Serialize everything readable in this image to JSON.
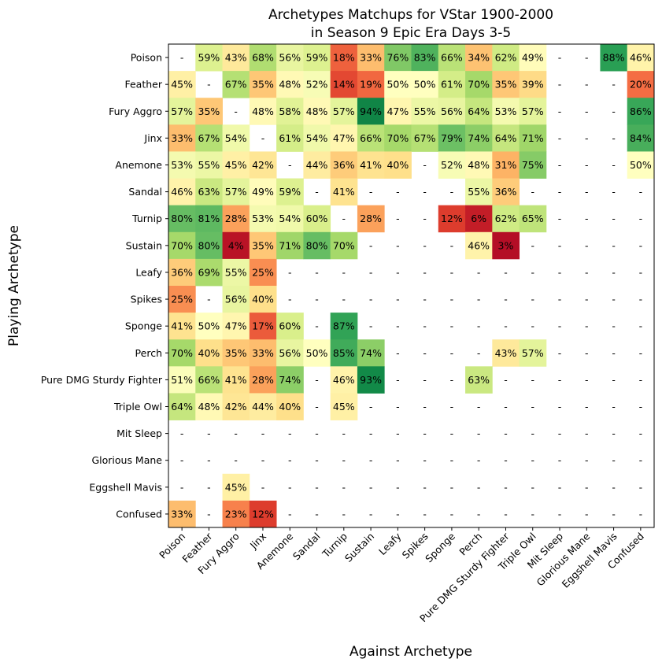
{
  "chart_data": {
    "type": "heatmap",
    "title": "Archetypes Matchups for VStar 1900-2000",
    "subtitle": "in Season 9 Epic Era Days 3-5",
    "xlabel": "Against Archetype",
    "ylabel": "Playing Archetype",
    "rows": [
      "Poison",
      "Feather",
      "Fury Aggro",
      "Jinx",
      "Anemone",
      "Sandal",
      "Turnip",
      "Sustain",
      "Leafy",
      "Spikes",
      "Sponge",
      "Perch",
      "Pure DMG Sturdy Fighter",
      "Triple Owl",
      "Mit Sleep",
      "Glorious Mane",
      "Eggshell Mavis",
      "Confused"
    ],
    "columns": [
      "Poison",
      "Feather",
      "Fury Aggro",
      "Jinx",
      "Anemone",
      "Sandal",
      "Turnip",
      "Sustain",
      "Leafy",
      "Spikes",
      "Sponge",
      "Perch",
      "Pure DMG Sturdy Fighter",
      "Triple Owl",
      "Mit Sleep",
      "Glorious Mane",
      "Eggshell Mavis",
      "Confused"
    ],
    "missing_label": "-",
    "value_unit": "%",
    "colormap": "RdYlGn",
    "vmin": 0,
    "vmax": 100,
    "values": [
      [
        null,
        59,
        43,
        68,
        56,
        59,
        18,
        33,
        76,
        83,
        66,
        34,
        62,
        49,
        null,
        null,
        88,
        46
      ],
      [
        45,
        null,
        67,
        35,
        48,
        52,
        14,
        19,
        50,
        50,
        61,
        70,
        35,
        39,
        null,
        null,
        null,
        20
      ],
      [
        57,
        35,
        null,
        48,
        58,
        48,
        57,
        94,
        47,
        55,
        56,
        64,
        53,
        57,
        null,
        null,
        null,
        86
      ],
      [
        33,
        67,
        54,
        null,
        61,
        54,
        47,
        66,
        70,
        67,
        79,
        74,
        64,
        71,
        null,
        null,
        null,
        84
      ],
      [
        53,
        55,
        45,
        42,
        null,
        44,
        36,
        41,
        40,
        null,
        52,
        48,
        31,
        75,
        null,
        null,
        null,
        50
      ],
      [
        46,
        63,
        57,
        49,
        59,
        null,
        41,
        null,
        null,
        null,
        null,
        55,
        36,
        null,
        null,
        null,
        null,
        null
      ],
      [
        80,
        81,
        28,
        53,
        54,
        60,
        null,
        28,
        null,
        null,
        12,
        6,
        62,
        65,
        null,
        null,
        null,
        null
      ],
      [
        70,
        80,
        4,
        35,
        71,
        80,
        70,
        null,
        null,
        null,
        null,
        46,
        3,
        null,
        null,
        null,
        null,
        null
      ],
      [
        36,
        69,
        55,
        25,
        null,
        null,
        null,
        null,
        null,
        null,
        null,
        null,
        null,
        null,
        null,
        null,
        null,
        null
      ],
      [
        25,
        null,
        56,
        40,
        null,
        null,
        null,
        null,
        null,
        null,
        null,
        null,
        null,
        null,
        null,
        null,
        null,
        null
      ],
      [
        41,
        50,
        47,
        17,
        60,
        null,
        87,
        null,
        null,
        null,
        null,
        null,
        null,
        null,
        null,
        null,
        null,
        null
      ],
      [
        70,
        40,
        35,
        33,
        56,
        50,
        85,
        74,
        null,
        null,
        null,
        null,
        43,
        57,
        null,
        null,
        null,
        null
      ],
      [
        51,
        66,
        41,
        28,
        74,
        null,
        46,
        93,
        null,
        null,
        null,
        63,
        null,
        null,
        null,
        null,
        null,
        null
      ],
      [
        64,
        48,
        42,
        44,
        40,
        null,
        45,
        null,
        null,
        null,
        null,
        null,
        null,
        null,
        null,
        null,
        null,
        null
      ],
      [
        null,
        null,
        null,
        null,
        null,
        null,
        null,
        null,
        null,
        null,
        null,
        null,
        null,
        null,
        null,
        null,
        null,
        null
      ],
      [
        null,
        null,
        null,
        null,
        null,
        null,
        null,
        null,
        null,
        null,
        null,
        null,
        null,
        null,
        null,
        null,
        null,
        null
      ],
      [
        null,
        null,
        45,
        null,
        null,
        null,
        null,
        null,
        null,
        null,
        null,
        null,
        null,
        null,
        null,
        null,
        null,
        null
      ],
      [
        33,
        null,
        23,
        12,
        null,
        null,
        null,
        null,
        null,
        null,
        null,
        null,
        null,
        null,
        null,
        null,
        null,
        null
      ]
    ]
  }
}
